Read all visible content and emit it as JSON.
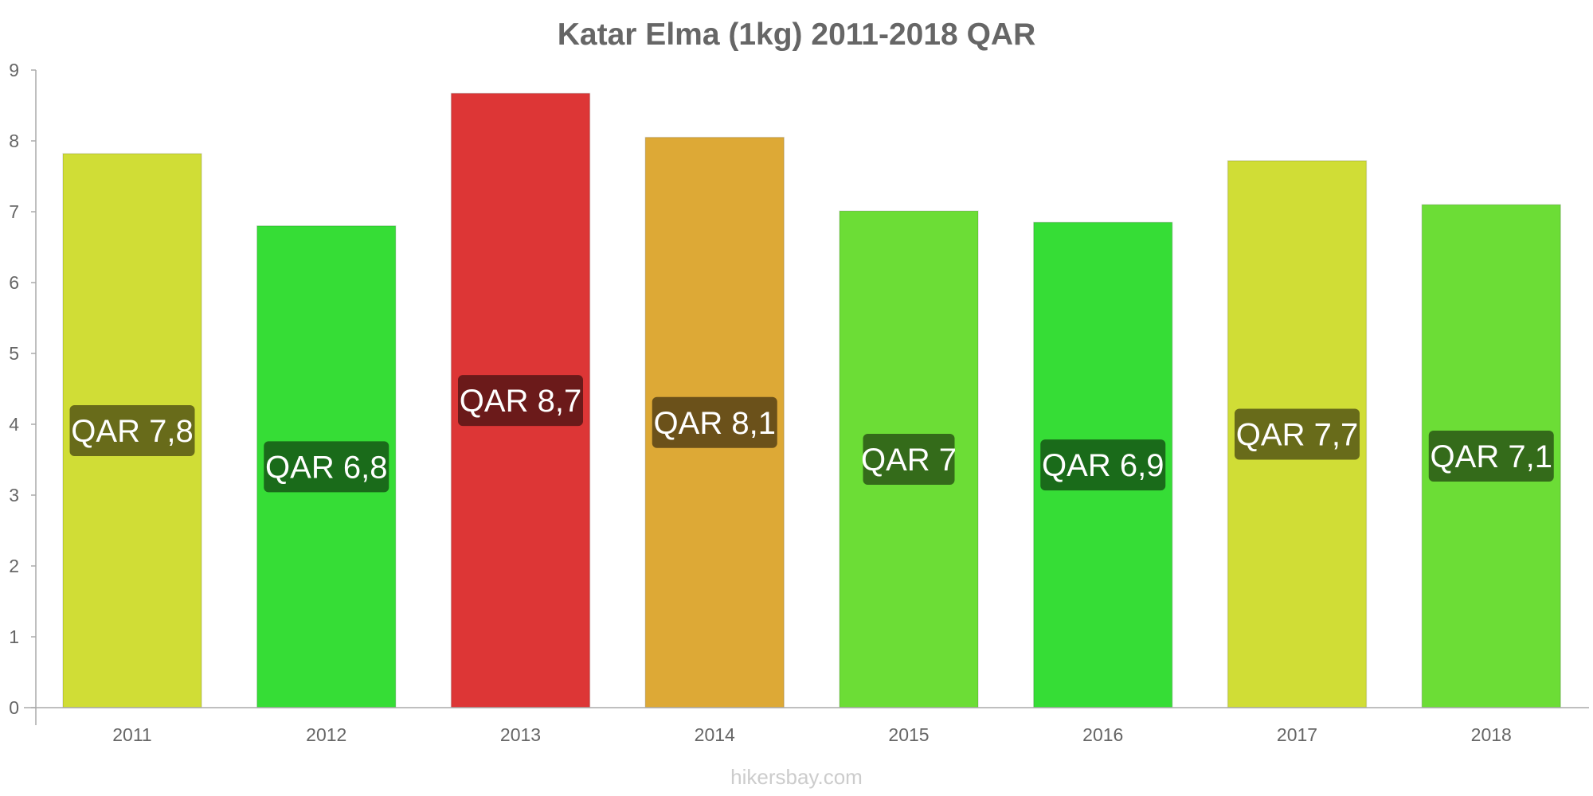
{
  "chart_data": {
    "type": "bar",
    "title": "Katar Elma (1kg) 2011-2018 QAR",
    "xlabel": "",
    "ylabel": "",
    "categories": [
      "2011",
      "2012",
      "2013",
      "2014",
      "2015",
      "2016",
      "2017",
      "2018"
    ],
    "values": [
      7.82,
      6.8,
      8.67,
      8.05,
      7.01,
      6.85,
      7.72,
      7.1
    ],
    "data_labels": [
      "QAR 7,8",
      "QAR 6,8",
      "QAR 8,7",
      "QAR 8,1",
      "QAR 7",
      "QAR 6,9",
      "QAR 7,7",
      "QAR 7,1"
    ],
    "bar_colors": [
      "#d0dd36",
      "#36dd36",
      "#dd3636",
      "#dda936",
      "#6cdd36",
      "#36dd36",
      "#d0dd36",
      "#6cdd36"
    ],
    "label_colors": [
      "#686b1a",
      "#1a6b1a",
      "#6b1a1a",
      "#6b511a",
      "#346b1a",
      "#1a6b1a",
      "#686b1a",
      "#346b1a"
    ],
    "ylim": [
      0,
      9
    ],
    "yticks": [
      "0",
      "1",
      "2",
      "3",
      "4",
      "5",
      "6",
      "7",
      "8",
      "9"
    ],
    "grid": false,
    "legend": "none"
  },
  "watermark": "hikersbay.com"
}
